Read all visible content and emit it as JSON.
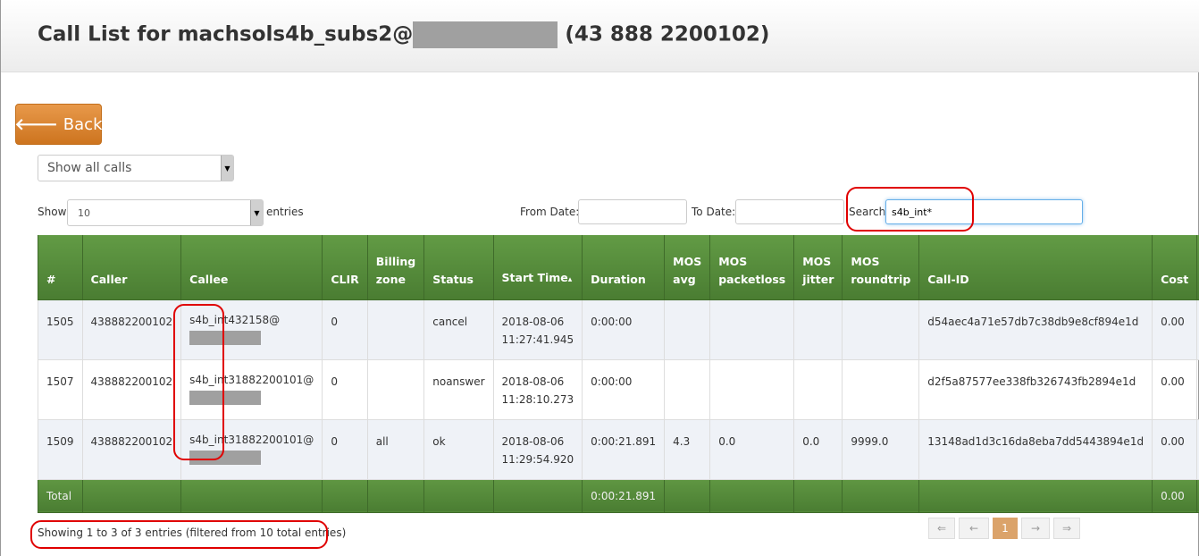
{
  "header": {
    "title_prefix": "Call List for machsols4b_subs2@",
    "title_suffix": "(43 888 2200102)"
  },
  "back_label": "Back",
  "filter_select": {
    "value": "Show all calls"
  },
  "length": {
    "show": "Show",
    "value": "10",
    "entries": "entries"
  },
  "dates": {
    "from_label": "From Date:",
    "from_value": "",
    "to_label": "To Date:",
    "to_value": ""
  },
  "search": {
    "label": "Search:",
    "value": "s4b_int*"
  },
  "table": {
    "columns": [
      "#",
      "Caller",
      "Callee",
      "CLIR",
      "Billing zone",
      "Status",
      "Start Time",
      "Duration",
      "MOS avg",
      "MOS packetloss",
      "MOS jitter",
      "MOS roundtrip",
      "Call-ID",
      "Cost",
      ""
    ],
    "sorted_column": "Start Time",
    "rows": [
      {
        "id": "1505",
        "caller": "438882200102",
        "callee": "s4b_int432158@",
        "clir": "0",
        "zone": "",
        "status": "cancel",
        "start_date": "2018-08-06",
        "start_time": "11:27:41.945",
        "duration": "0:00:00",
        "mos_avg": "",
        "mos_pl": "",
        "mos_jitter": "",
        "mos_rt": "",
        "call_id": "d54aec4a71e57db7c38db9e8cf894e1d",
        "cost": "0.00"
      },
      {
        "id": "1507",
        "caller": "438882200102",
        "callee": "s4b_int31882200101@",
        "clir": "0",
        "zone": "",
        "status": "noanswer",
        "start_date": "2018-08-06",
        "start_time": "11:28:10.273",
        "duration": "0:00:00",
        "mos_avg": "",
        "mos_pl": "",
        "mos_jitter": "",
        "mos_rt": "",
        "call_id": "d2f5a87577ee338fb326743fb2894e1d",
        "cost": "0.00"
      },
      {
        "id": "1509",
        "caller": "438882200102",
        "callee": "s4b_int31882200101@",
        "clir": "0",
        "zone": "all",
        "status": "ok",
        "start_date": "2018-08-06",
        "start_time": "11:29:54.920",
        "duration": "0:00:21.891",
        "mos_avg": "4.3",
        "mos_pl": "0.0",
        "mos_jitter": "0.0",
        "mos_rt": "9999.0",
        "call_id": "13148ad1d3c16da8eba7dd5443894e1d",
        "cost": "0.00"
      }
    ],
    "footer": {
      "label": "Total",
      "duration": "0:00:21.891",
      "cost": "0.00"
    }
  },
  "info": "Showing 1 to 3 of 3 entries (filtered from 10 total entries)",
  "pagination": {
    "first": "⇐",
    "prev": "←",
    "current": "1",
    "next": "→",
    "last": "⇒"
  },
  "colors": {
    "table_header": "#4f8a36",
    "back_button": "#dd8a35",
    "highlight": "#e00000",
    "active_page": "#dba36a"
  }
}
